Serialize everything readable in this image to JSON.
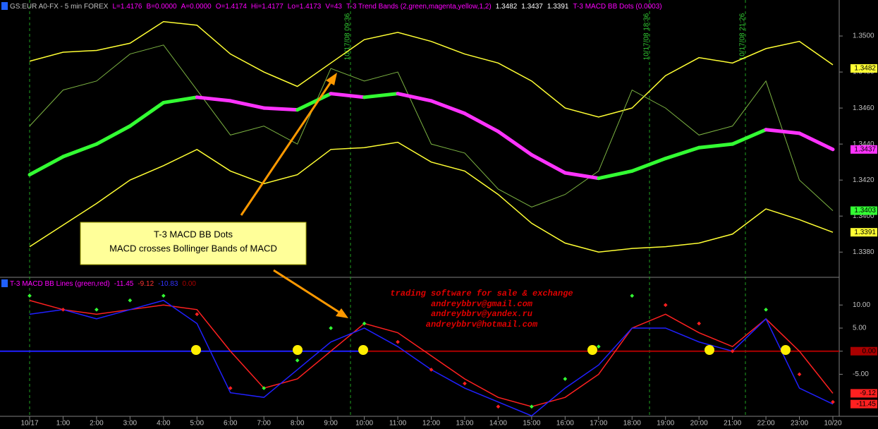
{
  "chart_data": [
    {
      "type": "line",
      "header": [
        {
          "text": "GS:EUR A0-FX - 5 min  FOREX",
          "color": "#c0c0c0"
        },
        {
          "text": "L=1.4176",
          "color": "#ff00ff"
        },
        {
          "text": "B=0.0000",
          "color": "#ff00ff"
        },
        {
          "text": "A=0.0000",
          "color": "#ff00ff"
        },
        {
          "text": "O=1.4174",
          "color": "#ff00ff"
        },
        {
          "text": "Hi=1.4177",
          "color": "#ff00ff"
        },
        {
          "text": "Lo=1.4173",
          "color": "#ff00ff"
        },
        {
          "text": "V=43",
          "color": "#ff00ff"
        },
        {
          "text": "T-3 Trend Bands (2,green,magenta,yellow,1,2)",
          "color": "#ff00ff"
        },
        {
          "text": "1.3482",
          "color": "#ffffff"
        },
        {
          "text": "1.3437",
          "color": "#ffffff"
        },
        {
          "text": "1.3391",
          "color": "#ffffff"
        },
        {
          "text": "T-3 MACD BB Dots (0.0003)",
          "color": "#ff00ff"
        }
      ],
      "ylim": [
        1.3366,
        1.352
      ],
      "yticks": [
        {
          "value": 1.338,
          "label": "1.3380"
        },
        {
          "value": 1.34,
          "label": "1.3400"
        },
        {
          "value": 1.342,
          "label": "1.3420"
        },
        {
          "value": 1.344,
          "label": "1.3440"
        },
        {
          "value": 1.346,
          "label": "1.3460"
        },
        {
          "value": 1.348,
          "label": "1.3480"
        },
        {
          "value": 1.35,
          "label": "1.3500"
        }
      ],
      "series": [
        {
          "color": "#ffff33",
          "values": [
            1.3486,
            1.3491,
            1.3492,
            1.3496,
            1.3508,
            1.3506,
            1.349,
            1.348,
            1.3472,
            1.3485,
            1.3498,
            1.3502,
            1.3497,
            1.349,
            1.3485,
            1.3475,
            1.346,
            1.3455,
            1.346,
            1.3478,
            1.3488,
            1.3485,
            1.3493,
            1.3497,
            1.3484
          ]
        },
        {
          "color": "#ffff33",
          "values": [
            1.3383,
            1.3395,
            1.3407,
            1.342,
            1.3428,
            1.3437,
            1.3425,
            1.3418,
            1.3423,
            1.3437,
            1.3438,
            1.3441,
            1.343,
            1.3425,
            1.3412,
            1.3396,
            1.3385,
            1.338,
            1.3382,
            1.3383,
            1.3385,
            1.339,
            1.3404,
            1.3398,
            1.3391
          ]
        },
        {
          "color": "#7cb342",
          "values": [
            1.345,
            1.347,
            1.3475,
            1.349,
            1.3495,
            1.347,
            1.3445,
            1.345,
            1.344,
            1.3482,
            1.3475,
            1.348,
            1.344,
            1.3435,
            1.3415,
            1.3405,
            1.3412,
            1.3425,
            1.347,
            1.346,
            1.3445,
            1.345,
            1.3475,
            1.342,
            1.3403
          ]
        },
        {
          "color": "#33ff33",
          "down_color": "#ff33ff",
          "values": [
            1.3423,
            1.3433,
            1.344,
            1.345,
            1.3463,
            1.3466,
            1.3464,
            1.346,
            1.3459,
            1.3468,
            1.3466,
            1.3468,
            1.3464,
            1.3457,
            1.3447,
            1.3434,
            1.3424,
            1.3421,
            1.3425,
            1.3432,
            1.3438,
            1.344,
            1.3448,
            1.3446,
            1.3437
          ]
        }
      ],
      "price_labels": [
        {
          "value": 1.3482,
          "label": "1.3482",
          "color": "#ffff33"
        },
        {
          "value": 1.3437,
          "label": "1.3437",
          "color": "#ff33ff"
        },
        {
          "value": 1.3403,
          "label": "1.3403",
          "color": "#33ff33"
        },
        {
          "value": 1.3391,
          "label": "1.3391",
          "color": "#ffff33"
        }
      ],
      "annotations": [
        "10/17/08 09:36",
        "10/17/08 18:36",
        "10/17/08 21:26"
      ],
      "callout": [
        "T-3 MACD BB Dots",
        "MACD crosses Bollinger Bands of MACD"
      ]
    },
    {
      "type": "line",
      "header": [
        {
          "text": "T-3 MACD BB Lines (green,red)",
          "color": "#ff00ff"
        },
        {
          "text": "-11.45",
          "color": "#ff00ff"
        },
        {
          "text": "-9.12",
          "color": "#ff3333"
        },
        {
          "text": "-10.83",
          "color": "#3333ff"
        },
        {
          "text": "0.00",
          "color": "#aa0000"
        }
      ],
      "categories": [
        "10/17",
        "1:00",
        "2:00",
        "3:00",
        "4:00",
        "5:00",
        "6:00",
        "7:00",
        "8:00",
        "9:00",
        "10:00",
        "11:00",
        "12:00",
        "13:00",
        "14:00",
        "15:00",
        "16:00",
        "17:00",
        "18:00",
        "19:00",
        "20:00",
        "21:00",
        "22:00",
        "23:00",
        "10/20"
      ],
      "ylim": [
        -14.1,
        16
      ],
      "yticks": [
        {
          "value": 10,
          "label": "10.00"
        },
        {
          "value": 5,
          "label": "5.00"
        },
        {
          "value": 0,
          "label": "0.00"
        },
        {
          "value": -5,
          "label": "-5.00"
        }
      ],
      "series": [
        {
          "color": "#ff2020",
          "values": [
            11,
            9,
            8,
            9,
            10,
            9,
            0,
            -8,
            -6,
            0,
            6,
            4,
            -1,
            -6,
            -10,
            -12,
            -10,
            -5,
            5,
            8,
            4,
            1,
            7,
            0,
            -9.12
          ]
        },
        {
          "color": "#2020ff",
          "values": [
            8,
            9,
            7,
            9,
            11,
            6,
            -9,
            -10,
            -4,
            2,
            5,
            1,
            -4,
            -8,
            -11,
            -14,
            -8,
            -3,
            5,
            5,
            2,
            0,
            7,
            -8,
            -11.45
          ]
        },
        {
          "color": "#33ff33",
          "down_color": "#ff2020",
          "markers": true,
          "values": [
            12,
            9,
            9,
            11,
            12,
            8,
            -8,
            -8,
            -2,
            5,
            6,
            2,
            -4,
            -7,
            -12,
            -12,
            -6,
            1,
            12,
            10,
            6,
            0,
            9,
            -5,
            -11
          ]
        }
      ],
      "price_labels": [
        {
          "value": 0,
          "label": "0.00",
          "color": "#aa0000"
        },
        {
          "value": -9.12,
          "label": "-9.12",
          "color": "#ff2020"
        },
        {
          "value": -11.45,
          "label": "-11.45",
          "color": "#ff2020"
        }
      ],
      "watermark": [
        "trading software for sale & exchange",
        "andreybbrv@gmail.com",
        "andreybbrv@yandex.ru",
        "andreybbrv@hotmail.com"
      ]
    }
  ]
}
